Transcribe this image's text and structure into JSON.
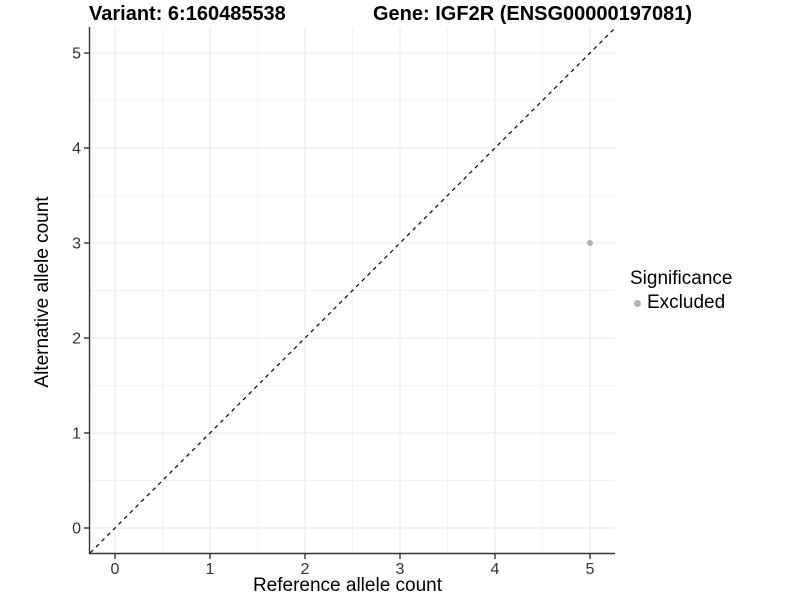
{
  "chart_data": {
    "type": "scatter",
    "variant_title": "Variant: 6:160485538",
    "gene_title": "Gene: IGF2R (ENSG00000197081)",
    "xlabel": "Reference allele count",
    "ylabel": "Alternative allele count",
    "x_ticks": [
      0,
      1,
      2,
      3,
      4,
      5
    ],
    "y_ticks": [
      0,
      1,
      2,
      3,
      4,
      5
    ],
    "xlim": [
      -0.26,
      5.26
    ],
    "ylim": [
      -0.26,
      5.26
    ],
    "grid": {
      "major": true,
      "minor": true
    },
    "points": [
      {
        "x": 5,
        "y": 3,
        "significance": "Excluded"
      }
    ],
    "identity_line": {
      "shown": true,
      "style": "dashed",
      "slope": 1,
      "intercept": 0
    },
    "legend": {
      "title": "Significance",
      "position": "right",
      "entries": [
        {
          "label": "Excluded",
          "color": "#b3b3b3"
        }
      ]
    },
    "colors": {
      "background": "#ffffff",
      "grid_major": "#e8e8e8",
      "grid_minor": "#f3f3f3",
      "axis": "#333333",
      "tick_label": "#333333",
      "identity_line": "#000000",
      "point_excluded": "#b3b3b3"
    }
  }
}
